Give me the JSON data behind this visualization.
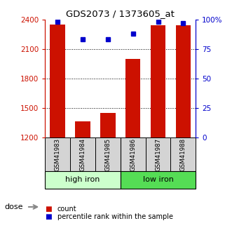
{
  "title": "GDS2073 / 1373605_at",
  "samples": [
    "GSM41983",
    "GSM41984",
    "GSM41985",
    "GSM41986",
    "GSM41987",
    "GSM41988"
  ],
  "counts": [
    2350,
    1370,
    1450,
    2000,
    2340,
    2340
  ],
  "percentiles": [
    98,
    83,
    83,
    88,
    98,
    97
  ],
  "group_labels": [
    "high iron",
    "low iron"
  ],
  "group_ranges": [
    [
      0,
      3
    ],
    [
      3,
      6
    ]
  ],
  "group_colors_light": [
    "#ccffcc",
    "#55dd55"
  ],
  "bar_color": "#cc1100",
  "dot_color": "#0000cc",
  "left_axis_color": "#cc1100",
  "right_axis_color": "#0000cc",
  "ylim_left": [
    1200,
    2400
  ],
  "ylim_right": [
    0,
    100
  ],
  "yticks_left": [
    1200,
    1500,
    1800,
    2100,
    2400
  ],
  "ytick_labels_left": [
    "1200",
    "1500",
    "1800",
    "2100",
    "2400"
  ],
  "yticks_right": [
    0,
    25,
    50,
    75,
    100
  ],
  "ytick_labels_right": [
    "0",
    "25",
    "50",
    "75",
    "100%"
  ],
  "grid_values": [
    1500,
    1800,
    2100
  ],
  "label_count": "count",
  "label_percentile": "percentile rank within the sample",
  "dose_label": "dose",
  "bar_width": 0.6
}
